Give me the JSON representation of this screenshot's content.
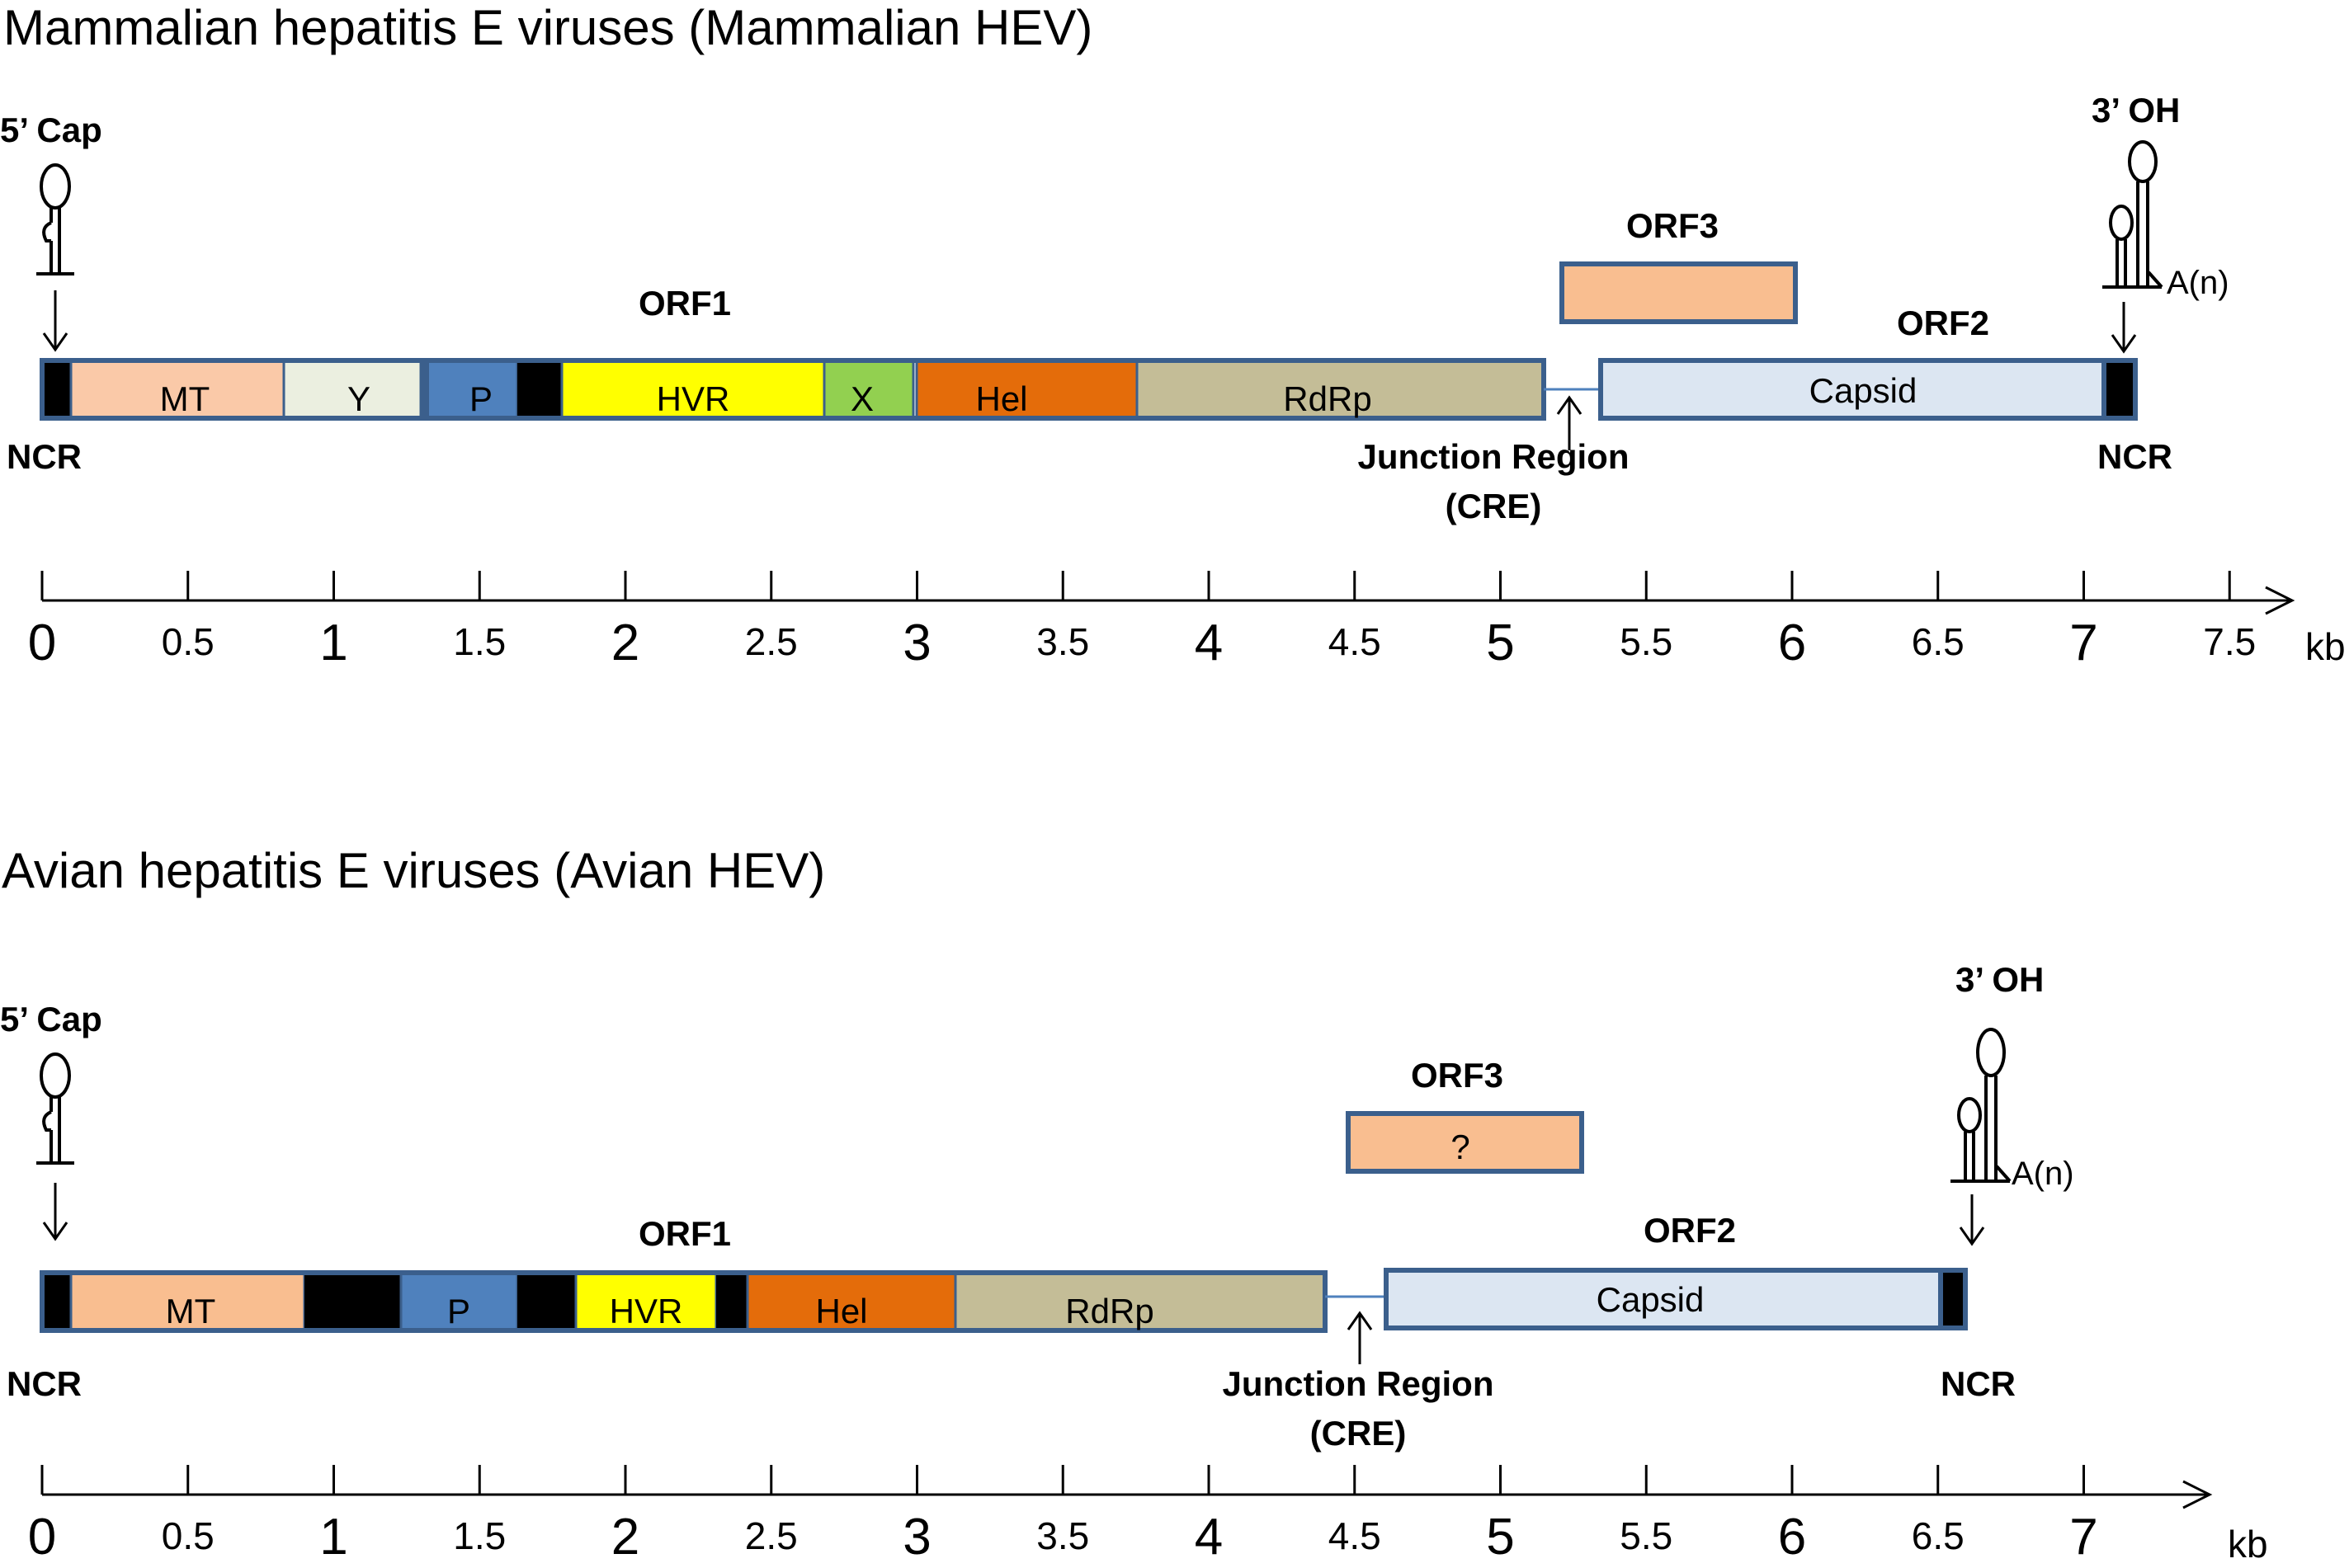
{
  "panel_a": {
    "title": "Mammalian hepatitis E viruses (Mammalian HEV)",
    "cap_label": "5’ Cap",
    "oh_label": "3’ OH",
    "polya_label": "A(n)",
    "ncr_left": "NCR",
    "ncr_right": "NCR",
    "orf1_label": "ORF1",
    "orf2_label": "ORF2",
    "orf3_label": "ORF3",
    "junction_label": "Junction Region",
    "cre_label": "(CRE)",
    "domains": {
      "mt": "MT",
      "y": "Y",
      "p": "P",
      "hvr": "HVR",
      "x": "X",
      "hel": "Hel",
      "rdrp": "RdRp",
      "capsid": "Capsid"
    },
    "axis_major": [
      "0",
      "1",
      "2",
      "3",
      "4",
      "5",
      "6",
      "7"
    ],
    "axis_minor": [
      "0.5",
      "1.5",
      "2.5",
      "3.5",
      "4.5",
      "5.5",
      "6.5",
      "7.5"
    ],
    "axis_unit": "kb"
  },
  "panel_b": {
    "title": "Avian hepatitis E viruses (Avian HEV)",
    "cap_label": "5’ Cap",
    "oh_label": "3’ OH",
    "polya_label": "A(n)",
    "ncr_left": "NCR",
    "ncr_right": "NCR",
    "orf1_label": "ORF1",
    "orf2_label": "ORF2",
    "orf3_label": "ORF3",
    "orf3_inner": "?",
    "junction_label": "Junction Region",
    "cre_label": "(CRE)",
    "domains": {
      "mt": "MT",
      "p": "P",
      "hvr": "HVR",
      "hel": "Hel",
      "rdrp": "RdRp",
      "capsid": "Capsid"
    },
    "axis_major": [
      "0",
      "1",
      "2",
      "3",
      "4",
      "5",
      "6",
      "7"
    ],
    "axis_minor": [
      "0.5",
      "1.5",
      "2.5",
      "3.5",
      "4.5",
      "5.5",
      "6.5"
    ],
    "axis_unit": "kb"
  },
  "colors": {
    "outline": "#3B5F8C",
    "mt": "#FAC9A8",
    "mt_avian": "#F9BE90",
    "y": "#EBEFE0",
    "p": "#4F81BD",
    "hvr": "#FFFF00",
    "x": "#92D050",
    "hel": "#E46C0A",
    "rdrp": "#C4BD97",
    "orf3": "#F9BE90",
    "capsid": "#DCE6F2",
    "black": "#000000"
  }
}
